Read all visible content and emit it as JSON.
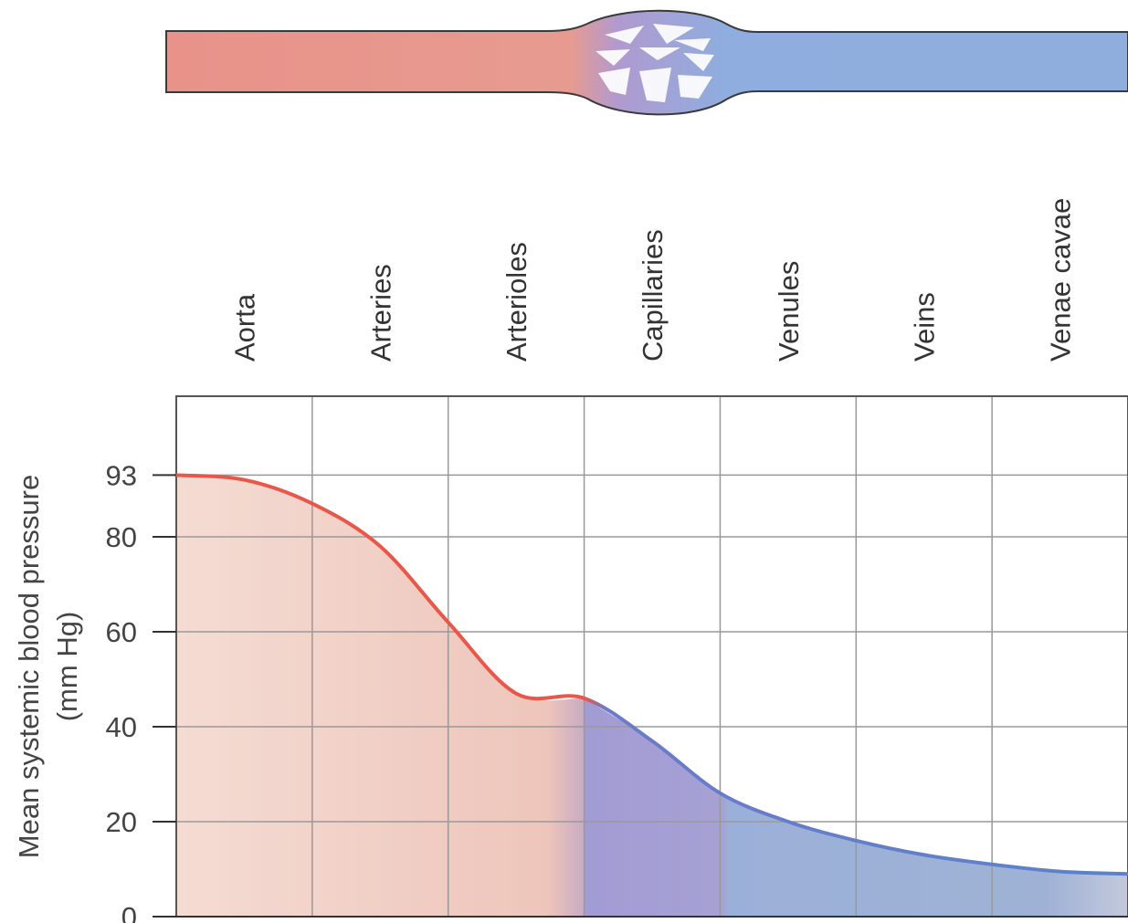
{
  "chart_data": {
    "type": "area",
    "title": "",
    "ylabel": "Mean systemic blood pressure",
    "ylabel_unit": "(mm Hg)",
    "xlabel": "",
    "categories": [
      "Aorta",
      "Arteries",
      "Arterioles",
      "Capillaries",
      "Venules",
      "Veins",
      "Venae cavae"
    ],
    "y_ticks": [
      0,
      20,
      40,
      60,
      80,
      93
    ],
    "ylim": [
      0,
      101
    ],
    "grid": true,
    "legend": "none",
    "series": [
      {
        "x": [
          0,
          0.5,
          1,
          1.5,
          2,
          2.5,
          3,
          3.5,
          4,
          4.5,
          5,
          5.5,
          6,
          6.5,
          7
        ],
        "values": [
          93,
          92,
          87,
          78,
          62,
          47,
          46,
          37,
          26,
          20,
          16,
          13,
          11,
          9.5,
          9
        ]
      }
    ],
    "boundary_category": "Capillaries",
    "colors": {
      "arterial_line": "#e9574a",
      "venous_line": "#5b82cc",
      "arterial_fill": "#f2d2c8",
      "capillary_fill": "#a7a2d3",
      "venous_fill": "#9fb3d9",
      "grid": "#999999",
      "vessel_arterial": "#e8928a",
      "vessel_venous": "#8faedd"
    }
  },
  "vessel_diagram": {
    "segments": [
      "arterial",
      "capillary-bed",
      "venous"
    ]
  }
}
